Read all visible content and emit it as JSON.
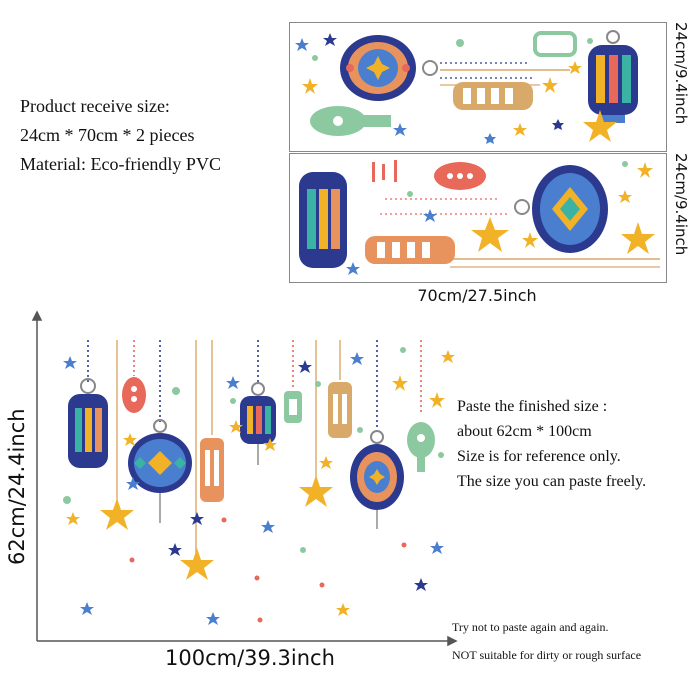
{
  "product_info": {
    "lines": [
      "Product receive size:",
      "24cm * 70cm * 2 pieces",
      "Material: Eco-friendly PVC"
    ]
  },
  "sheets": {
    "top_height_label": "24cm/9.4inch",
    "bottom_height_label": "24cm/9.4inch",
    "width_label": "70cm/27.5inch"
  },
  "finished": {
    "height_label": "62cm/24.4inch",
    "width_label": "100cm/39.3inch",
    "lines": [
      "Paste the finished size :",
      "about 62cm * 100cm",
      "Size is for reference only.",
      "The size you can paste freely."
    ]
  },
  "notes": {
    "line1": "Try not to paste again and again.",
    "line2": "NOT suitable for dirty or rough surface"
  },
  "colors": {
    "navy": "#2b3a8f",
    "blue": "#4a7fd0",
    "gold": "#f2b227",
    "red": "#e8685a",
    "orange": "#e8935e",
    "green": "#8cc9a0",
    "tan": "#d9a96a",
    "teal": "#3ab3a4"
  }
}
